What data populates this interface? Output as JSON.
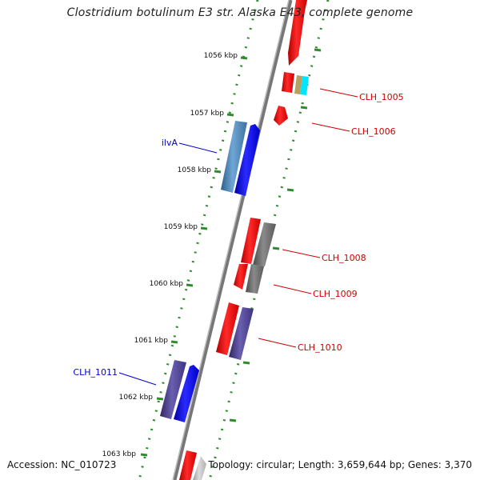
{
  "title": "Clostridium botulinum E3 str. Alaska E43, complete genome",
  "footer": {
    "accession": "Accession: NC_010723",
    "summary": "Topology: circular; Length: 3,659,644 bp; Genes: 3,370"
  },
  "ruler": {
    "ticks": [
      "1056 kbp",
      "1057 kbp",
      "1058 kbp",
      "1059 kbp",
      "1060 kbp",
      "1061 kbp",
      "1062 kbp",
      "1063 kbp"
    ]
  },
  "gene_labels": [
    {
      "name": "CLH_1005",
      "side": "right",
      "color": "#cc0000"
    },
    {
      "name": "CLH_1006",
      "side": "right",
      "color": "#cc0000"
    },
    {
      "name": "ilvA",
      "side": "left",
      "color": "#0000cc"
    },
    {
      "name": "CLH_1008",
      "side": "right",
      "color": "#cc0000"
    },
    {
      "name": "CLH_1009",
      "side": "right",
      "color": "#cc0000"
    },
    {
      "name": "CLH_1010",
      "side": "right",
      "color": "#cc0000"
    },
    {
      "name": "CLH_1011",
      "side": "left",
      "color": "#0000cc"
    }
  ],
  "colors": {
    "forward_strand": "#ff0000",
    "reverse_strand": "#0000ff",
    "tick": "#2e8b2e",
    "backbone": "#777777",
    "steelblue": "#4682b4",
    "slate": "#483d8b",
    "gray": "#6b6b6b",
    "olive": "#b8a060",
    "cyan": "#00e5ff"
  }
}
